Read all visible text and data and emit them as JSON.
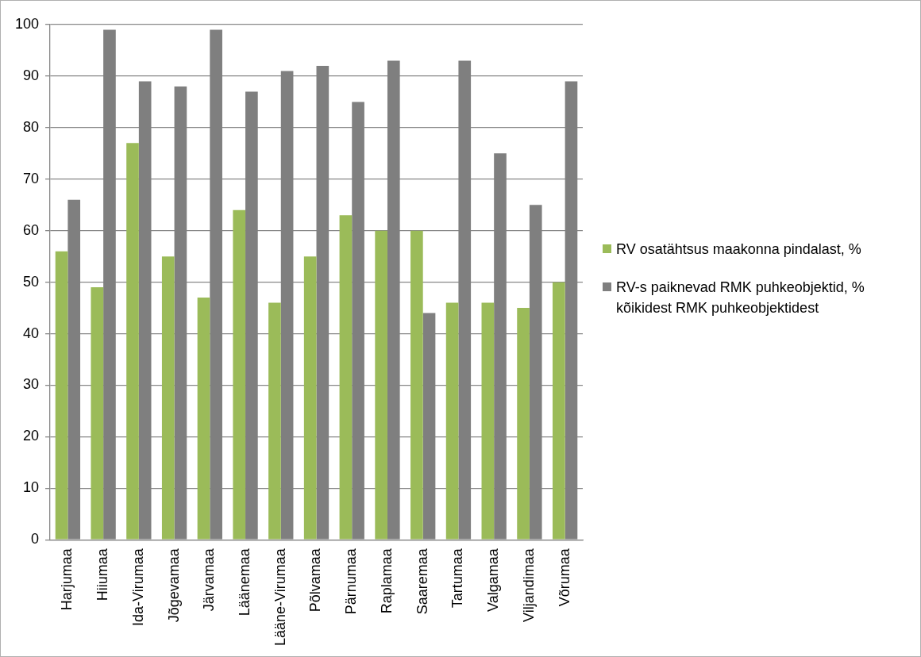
{
  "chart_data": {
    "type": "bar",
    "categories": [
      "Harjumaa",
      "Hiiumaa",
      "Ida-Virumaa",
      "Jõgevamaa",
      "Järvamaa",
      "Läänemaa",
      "Lääne-Virumaa",
      "Põlvamaa",
      "Pärnumaa",
      "Raplamaa",
      "Saaremaa",
      "Tartumaa",
      "Valgamaa",
      "Viljandimaa",
      "Võrumaa"
    ],
    "series": [
      {
        "name": "RV osatähtsus maakonna pindalast, %",
        "color": "#9bbb59",
        "values": [
          56,
          49,
          77,
          55,
          47,
          64,
          46,
          55,
          63,
          60,
          60,
          46,
          46,
          45,
          50
        ]
      },
      {
        "name": "RV-s paiknevad RMK puhkeobjektid, % kõikidest RMK puhkeobjektidest",
        "color": "#7f7f7f",
        "values": [
          66,
          99,
          89,
          88,
          99,
          87,
          91,
          92,
          85,
          93,
          44,
          93,
          75,
          65,
          89
        ]
      }
    ],
    "ylim": [
      0,
      100
    ],
    "yticks": [
      0,
      10,
      20,
      30,
      40,
      50,
      60,
      70,
      80,
      90,
      100
    ],
    "grid": "y",
    "legend": "right"
  }
}
